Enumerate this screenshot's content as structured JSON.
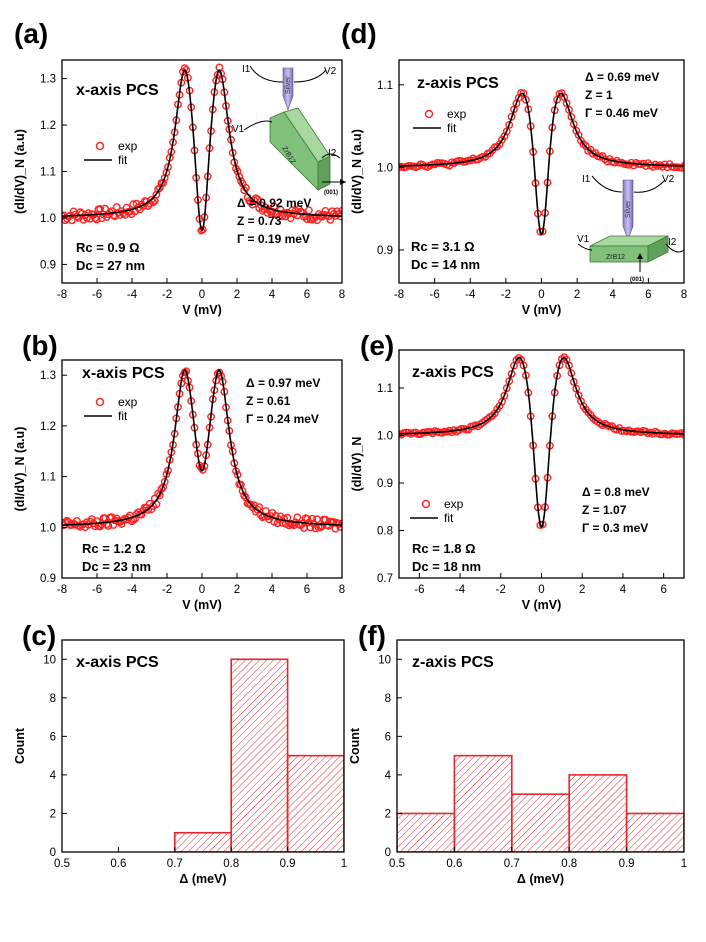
{
  "colors": {
    "exp": "#ff2020",
    "fit": "#000000",
    "bar": "#e8262a",
    "stick": "#e8262a"
  },
  "chart_data": [
    {
      "id": "a",
      "type": "scatter",
      "panel_label": "(a)",
      "title": "x-axis PCS",
      "xlabel": "V (mV)",
      "ylabel": "(dI/dV)_N (a.u)",
      "xlim": [
        -8,
        8
      ],
      "ylim": [
        0.86,
        1.34
      ],
      "xticks": [
        -8,
        -6,
        -4,
        -2,
        0,
        2,
        4,
        6,
        8
      ],
      "yticks": [
        0.9,
        1.0,
        1.1,
        1.2,
        1.3
      ],
      "ytick_labels": [
        "0.9",
        "1.0",
        "1.1",
        "1.2",
        "1.3"
      ],
      "legend": [
        "exp",
        "fit"
      ],
      "params": [
        "Δ = 0.92 meV",
        "Z = 0.73",
        "Γ = 0.19 meV"
      ],
      "contact": [
        "Rc = 0.9 Ω",
        "Dc = 27 nm"
      ],
      "fit": {
        "gap_meV": 0.92,
        "Z": 0.73,
        "Gamma_meV": 0.19
      },
      "peaks": [
        {
          "V": -1.0,
          "G": 1.29
        },
        {
          "V": 1.0,
          "G": 1.29
        }
      ],
      "min_at_zero": 0.9,
      "noise": 0.012,
      "inset": {
        "type": "schematic",
        "axis": "x",
        "labels": {
          "I1": "I1",
          "V2": "V2",
          "V1": "V1",
          "I2": "I2",
          "tip": "Silver",
          "crystal": "ZrB12",
          "dir": "(001)"
        }
      }
    },
    {
      "id": "b",
      "type": "scatter",
      "panel_label": "(b)",
      "title": "x-axis PCS",
      "xlabel": "V (mV)",
      "ylabel": "(dI/dV)_N (a.u)",
      "xlim": [
        -8,
        8
      ],
      "ylim": [
        0.9,
        1.33
      ],
      "xticks": [
        -8,
        -6,
        -4,
        -2,
        0,
        2,
        4,
        6,
        8
      ],
      "yticks": [
        0.9,
        1.0,
        1.1,
        1.2,
        1.3
      ],
      "ytick_labels": [
        "0.9",
        "1.0",
        "1.1",
        "1.2",
        "1.3"
      ],
      "legend": [
        "exp",
        "fit"
      ],
      "params": [
        "Δ = 0.97 meV",
        "Z = 0.61",
        "Γ = 0.24 meV"
      ],
      "contact": [
        "Rc = 1.2 Ω",
        "Dc = 23 nm"
      ],
      "fit": {
        "gap_meV": 0.97,
        "Z": 0.61,
        "Gamma_meV": 0.24
      },
      "peaks": [
        {
          "V": -1.0,
          "G": 1.28
        },
        {
          "V": 1.0,
          "G": 1.28
        }
      ],
      "min_at_zero": 1.03,
      "noise": 0.01
    },
    {
      "id": "c",
      "type": "bar",
      "panel_label": "(c)",
      "title": "x-axis PCS",
      "xlabel": "Δ (meV)",
      "ylabel": "Count",
      "xlim": [
        0.5,
        1.0
      ],
      "ylim": [
        0,
        11
      ],
      "xticks": [
        0.5,
        0.6,
        0.7,
        0.8,
        0.9,
        1.0
      ],
      "yticks": [
        0,
        2,
        4,
        6,
        8,
        10
      ],
      "bins": [
        {
          "from": 0.7,
          "to": 0.8,
          "count": 1
        },
        {
          "from": 0.8,
          "to": 0.9,
          "count": 10
        },
        {
          "from": 0.9,
          "to": 1.0,
          "count": 5
        }
      ]
    },
    {
      "id": "d",
      "type": "scatter",
      "panel_label": "(d)",
      "title": "z-axis PCS",
      "xlabel": "V (mV)",
      "ylabel": "(dI/dV)_N (a.u)",
      "xlim": [
        -8,
        8
      ],
      "ylim": [
        0.86,
        1.13
      ],
      "xticks": [
        -8,
        -6,
        -4,
        -2,
        0,
        2,
        4,
        6,
        8
      ],
      "yticks": [
        0.9,
        1.0,
        1.1
      ],
      "ytick_labels": [
        "0.9",
        "1.0",
        "1.1"
      ],
      "legend": [
        "exp",
        "fit"
      ],
      "params": [
        "Δ = 0.69 meV",
        "Z = 1",
        "Γ = 0.46 meV"
      ],
      "contact": [
        "Rc = 3.1 Ω",
        "Dc = 14 nm"
      ],
      "fit": {
        "gap_meV": 0.69,
        "Z": 1.0,
        "Gamma_meV": 0.46
      },
      "peaks": [
        {
          "V": -1.1,
          "G": 1.08
        },
        {
          "V": 1.1,
          "G": 1.08
        }
      ],
      "min_at_zero": 0.89,
      "noise": 0.0025,
      "inset": {
        "type": "schematic",
        "axis": "z",
        "labels": {
          "I1": "I1",
          "V2": "V2",
          "V1": "V1",
          "I2": "I2",
          "tip": "Silver",
          "crystal": "ZrB12",
          "dir": "(001)"
        }
      }
    },
    {
      "id": "e",
      "type": "scatter",
      "panel_label": "(e)",
      "title": "z-axis PCS",
      "xlabel": "V (mV)",
      "ylabel": "(dI/dV)_N",
      "xlim": [
        -7,
        7
      ],
      "ylim": [
        0.7,
        1.18
      ],
      "xticks": [
        -6,
        -4,
        -2,
        0,
        2,
        4,
        6
      ],
      "yticks": [
        0.7,
        0.8,
        0.9,
        1.0,
        1.1
      ],
      "ytick_labels": [
        "0.7",
        "0.8",
        "0.9",
        "1.0",
        "1.1"
      ],
      "legend": [
        "exp",
        "fit"
      ],
      "params": [
        "Δ = 0.8 meV",
        "Z = 1.07",
        "Γ = 0.3 meV"
      ],
      "contact": [
        "Rc = 1.8 Ω",
        "Dc = 18 nm"
      ],
      "fit": {
        "gap_meV": 0.8,
        "Z": 1.07,
        "Gamma_meV": 0.3
      },
      "peaks": [
        {
          "V": -1.1,
          "G": 1.15
        },
        {
          "V": 1.1,
          "G": 1.15
        }
      ],
      "min_at_zero": 0.77,
      "noise": 0.003
    },
    {
      "id": "f",
      "type": "bar",
      "panel_label": "(f)",
      "title": "z-axis PCS",
      "xlabel": "Δ (meV)",
      "ylabel": "Count",
      "xlim": [
        0.5,
        1.0
      ],
      "ylim": [
        0,
        11
      ],
      "xticks": [
        0.5,
        0.6,
        0.7,
        0.8,
        0.9,
        1.0
      ],
      "yticks": [
        0,
        2,
        4,
        6,
        8,
        10
      ],
      "bins": [
        {
          "from": 0.5,
          "to": 0.6,
          "count": 2
        },
        {
          "from": 0.6,
          "to": 0.7,
          "count": 5
        },
        {
          "from": 0.7,
          "to": 0.8,
          "count": 3
        },
        {
          "from": 0.8,
          "to": 0.9,
          "count": 4
        },
        {
          "from": 0.9,
          "to": 1.0,
          "count": 2
        }
      ]
    }
  ]
}
